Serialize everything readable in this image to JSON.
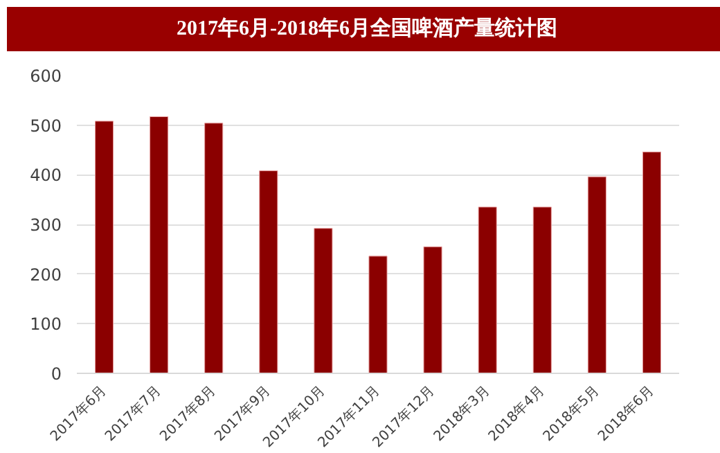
{
  "chart_data": {
    "type": "bar",
    "title": "2017年6月-2018年6月全国啤酒产量统计图",
    "categories": [
      "2017年6月",
      "2017年7月",
      "2017年8月",
      "2017年9月",
      "2017年10月",
      "2017年11月",
      "2017年12月",
      "2018年3月",
      "2018年4月",
      "2018年5月",
      "2018年6月"
    ],
    "values": [
      508,
      517,
      504,
      408,
      292,
      236,
      255,
      335,
      335,
      396,
      446
    ],
    "color": "#8b0000",
    "ylim": [
      0,
      600
    ],
    "yticks": [
      0,
      100,
      200,
      300,
      400,
      500,
      600
    ],
    "grid": "y"
  }
}
